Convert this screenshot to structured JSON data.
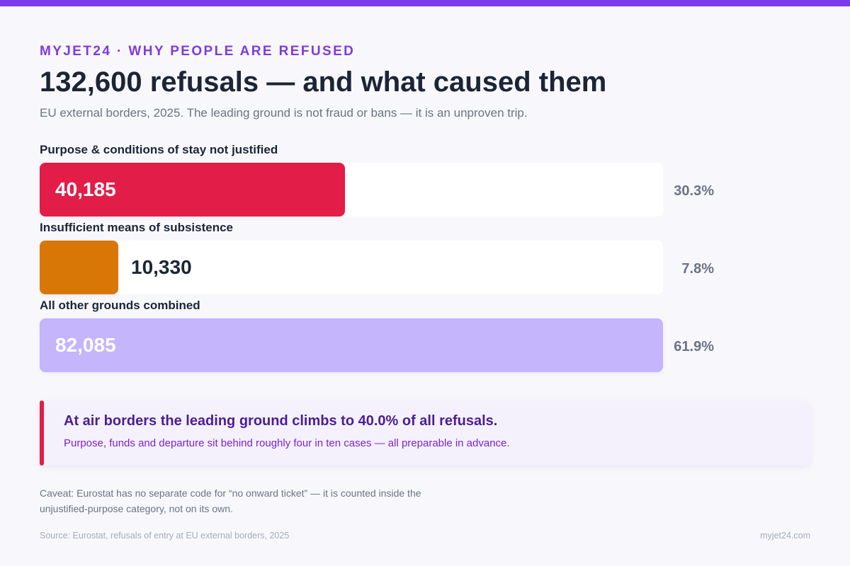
{
  "kicker": "MYJET24 · WHY PEOPLE ARE REFUSED",
  "title": "132,600 refusals — and what caused them",
  "subtitle": "EU external borders, 2025. The leading ground is not fraud or bans — it is an unproven trip.",
  "chart_data": {
    "type": "bar",
    "orientation": "horizontal",
    "title": "132,600 refusals — and what caused them",
    "total": 132600,
    "categories": [
      "Purpose & conditions of stay not justified",
      "Insufficient means of subsistence",
      "All other grounds combined"
    ],
    "values": [
      40185,
      10330,
      82085
    ],
    "value_labels": [
      "40,185",
      "10,330",
      "82,085"
    ],
    "percent_labels": [
      "30.3%",
      "7.8%",
      "61.9%"
    ],
    "colors": [
      "#e11d48",
      "#d97706",
      "#c4b5fd"
    ],
    "xlim": [
      0,
      82085
    ],
    "grid": false
  },
  "callout": {
    "title": "At air borders the leading ground climbs to 40.0% of all refusals.",
    "text": "Purpose, funds and departure sit behind roughly four in ten cases — all preparable in advance.",
    "accent_color": "#e11d48"
  },
  "caveat": "Caveat: Eurostat has no separate code for “no onward ticket” — it is counted inside the unjustified-purpose category, not on its own.",
  "source": "Source: Eurostat, refusals of entry at EU external borders, 2025",
  "brand": "myjet24.com"
}
